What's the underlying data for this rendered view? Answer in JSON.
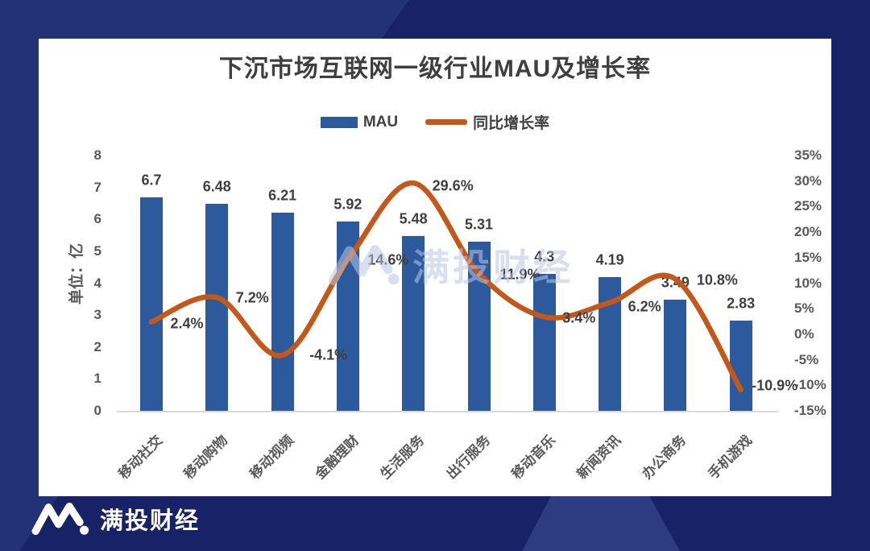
{
  "page": {
    "brand": "满投财经",
    "watermark": "满投财经"
  },
  "chart_data": {
    "type": "bar",
    "combo": "bar+line",
    "title": "下沉市场互联网一级行业MAU及增长率",
    "categories": [
      "移动社交",
      "移动购物",
      "移动视频",
      "金融理财",
      "生活服务",
      "出行服务",
      "移动音乐",
      "新闻资讯",
      "办公商务",
      "手机游戏"
    ],
    "series": [
      {
        "name": "MAU",
        "type": "bar",
        "unit": "亿",
        "values": [
          6.7,
          6.48,
          6.21,
          5.92,
          5.48,
          5.31,
          4.3,
          4.19,
          3.49,
          2.83
        ],
        "labels": [
          "6.7",
          "6.48",
          "6.21",
          "5.92",
          "5.48",
          "5.31",
          "4.3",
          "4.19",
          "3.49",
          "2.83"
        ]
      },
      {
        "name": "同比增长率",
        "type": "line",
        "unit": "%",
        "values": [
          2.4,
          7.2,
          -4.1,
          14.6,
          29.6,
          11.9,
          3.4,
          6.2,
          10.8,
          -10.9
        ],
        "labels": [
          "2.4%",
          "7.2%",
          "-4.1%",
          "14.6%",
          "29.6%",
          "11.9%",
          "3.4%",
          "6.2%",
          "10.8%",
          "-10.9%"
        ]
      }
    ],
    "left_axis": {
      "title": "单位：亿",
      "min": 0,
      "max": 8,
      "ticks": [
        "8",
        "7",
        "6",
        "5",
        "4",
        "3",
        "2",
        "1",
        "0"
      ]
    },
    "right_axis": {
      "min": -15,
      "max": 35,
      "ticks": [
        "35%",
        "30%",
        "25%",
        "20%",
        "15%",
        "10%",
        "5%",
        "0%",
        "-5%",
        "-10%",
        "-15%"
      ]
    },
    "legend": [
      {
        "label": "MAU",
        "color": "#2d5a9d"
      },
      {
        "label": "同比增长率",
        "color": "#c4571a"
      }
    ],
    "colors": {
      "bar": "#2d5a9d",
      "line": "#c4571a",
      "axis": "#d9d9d9",
      "label": "#3f3f3f",
      "tick": "#595959"
    },
    "grid": false,
    "legend_position": "top-center"
  }
}
